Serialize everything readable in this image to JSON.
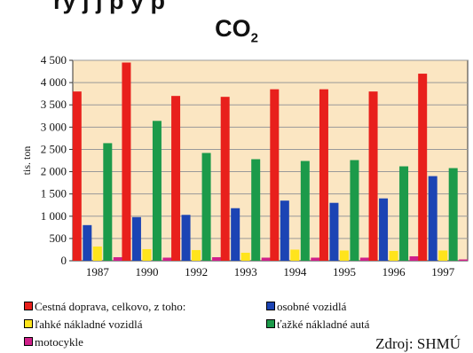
{
  "chart_data": {
    "type": "bar",
    "title_top": "ry j                   j p  y p",
    "title_main": "CO",
    "title_sub": "2",
    "ylabel": "tis. ton",
    "ylim": [
      0,
      4500
    ],
    "yticks": [
      "0",
      "500",
      "1 000",
      "1 500",
      "2 000",
      "2 500",
      "3 000",
      "3 500",
      "4 000",
      "4 500"
    ],
    "categories": [
      "1987",
      "1990",
      "1992",
      "1993",
      "1994",
      "1995",
      "1996",
      "1997"
    ],
    "series": [
      {
        "name": "Cestná doprava, celkovo, z toho:",
        "color": "#e8201c",
        "values": [
          3800,
          4450,
          3700,
          3680,
          3850,
          3850,
          3800,
          4200
        ]
      },
      {
        "name": "osobné vozidlá",
        "color": "#1c44b4",
        "values": [
          800,
          980,
          1030,
          1180,
          1350,
          1300,
          1400,
          1900
        ]
      },
      {
        "name": "ľahké nákladné vozidlá",
        "color": "#ffe41c",
        "values": [
          320,
          260,
          240,
          180,
          250,
          230,
          220,
          230
        ]
      },
      {
        "name": "ťažké nákladné autá",
        "color": "#1c9a4a",
        "values": [
          2640,
          3140,
          2420,
          2280,
          2240,
          2260,
          2120,
          2080
        ]
      },
      {
        "name": "motocykle",
        "color": "#d0208a",
        "values": [
          80,
          70,
          80,
          70,
          70,
          70,
          100,
          30
        ]
      }
    ],
    "plot_background": "#fbe6c2",
    "grid": true
  },
  "source": "Zdroj: SHMÚ"
}
